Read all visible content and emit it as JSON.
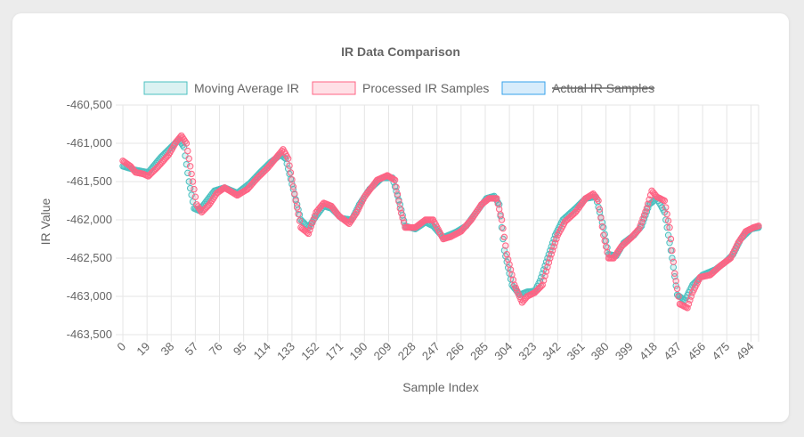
{
  "chart_data": {
    "type": "scatter",
    "title": "IR Data Comparison",
    "xlabel": "Sample Index",
    "ylabel": "IR Value",
    "xlim": [
      0,
      500
    ],
    "ylim": [
      -463500,
      -460500
    ],
    "x_tick_labels": [
      "0",
      "19",
      "38",
      "57",
      "76",
      "95",
      "114",
      "133",
      "152",
      "171",
      "190",
      "209",
      "228",
      "247",
      "266",
      "285",
      "304",
      "323",
      "342",
      "361",
      "380",
      "399",
      "418",
      "437",
      "456",
      "475",
      "494"
    ],
    "y_tick_labels": [
      "-460,500",
      "-461,000",
      "-461,500",
      "-462,000",
      "-462,500",
      "-463,000",
      "-463,500"
    ],
    "y_tick_values": [
      -460500,
      -461000,
      -461500,
      -462000,
      -462500,
      -463000,
      -463500
    ],
    "grid": true,
    "legend_position": "top",
    "series": [
      {
        "name": "Moving Average IR",
        "color": "#4bc0c0",
        "fill": "rgba(75,192,192,0.2)",
        "hidden": false,
        "keypoints": [
          [
            0,
            -461300
          ],
          [
            10,
            -461350
          ],
          [
            20,
            -461380
          ],
          [
            30,
            -461180
          ],
          [
            38,
            -461050
          ],
          [
            44,
            -460950
          ],
          [
            48,
            -461050
          ],
          [
            52,
            -461500
          ],
          [
            56,
            -461850
          ],
          [
            60,
            -461880
          ],
          [
            66,
            -461750
          ],
          [
            72,
            -461620
          ],
          [
            80,
            -461580
          ],
          [
            90,
            -461650
          ],
          [
            100,
            -461520
          ],
          [
            108,
            -461380
          ],
          [
            116,
            -461250
          ],
          [
            124,
            -461150
          ],
          [
            128,
            -461200
          ],
          [
            134,
            -461600
          ],
          [
            140,
            -462000
          ],
          [
            146,
            -462100
          ],
          [
            152,
            -461950
          ],
          [
            158,
            -461820
          ],
          [
            164,
            -461850
          ],
          [
            172,
            -461980
          ],
          [
            180,
            -462000
          ],
          [
            186,
            -461800
          ],
          [
            194,
            -461600
          ],
          [
            204,
            -461450
          ],
          [
            212,
            -461450
          ],
          [
            218,
            -461800
          ],
          [
            222,
            -462080
          ],
          [
            230,
            -462120
          ],
          [
            238,
            -462030
          ],
          [
            244,
            -462080
          ],
          [
            252,
            -462230
          ],
          [
            262,
            -462160
          ],
          [
            270,
            -462080
          ],
          [
            278,
            -461900
          ],
          [
            286,
            -461720
          ],
          [
            292,
            -461690
          ],
          [
            296,
            -461800
          ],
          [
            300,
            -462400
          ],
          [
            306,
            -462850
          ],
          [
            312,
            -462980
          ],
          [
            318,
            -462940
          ],
          [
            324,
            -462930
          ],
          [
            328,
            -462800
          ],
          [
            334,
            -462500
          ],
          [
            340,
            -462200
          ],
          [
            346,
            -462000
          ],
          [
            356,
            -461850
          ],
          [
            364,
            -461720
          ],
          [
            372,
            -461700
          ],
          [
            378,
            -462100
          ],
          [
            382,
            -462450
          ],
          [
            388,
            -462470
          ],
          [
            394,
            -462300
          ],
          [
            402,
            -462200
          ],
          [
            408,
            -462080
          ],
          [
            414,
            -461800
          ],
          [
            420,
            -461720
          ],
          [
            426,
            -461900
          ],
          [
            432,
            -462500
          ],
          [
            436,
            -462980
          ],
          [
            442,
            -463050
          ],
          [
            448,
            -462850
          ],
          [
            456,
            -462720
          ],
          [
            466,
            -462650
          ],
          [
            474,
            -462550
          ],
          [
            480,
            -462450
          ],
          [
            486,
            -462250
          ],
          [
            494,
            -462120
          ],
          [
            500,
            -462100
          ]
        ]
      },
      {
        "name": "Processed IR Samples",
        "color": "#ff6384",
        "fill": "rgba(255,99,132,0.2)",
        "hidden": false,
        "keypoints": [
          [
            0,
            -461230
          ],
          [
            6,
            -461300
          ],
          [
            10,
            -461380
          ],
          [
            16,
            -461400
          ],
          [
            20,
            -461430
          ],
          [
            28,
            -461300
          ],
          [
            36,
            -461150
          ],
          [
            42,
            -460980
          ],
          [
            46,
            -460900
          ],
          [
            50,
            -461000
          ],
          [
            54,
            -461400
          ],
          [
            58,
            -461800
          ],
          [
            62,
            -461900
          ],
          [
            68,
            -461800
          ],
          [
            74,
            -461650
          ],
          [
            80,
            -461580
          ],
          [
            90,
            -461680
          ],
          [
            98,
            -461600
          ],
          [
            106,
            -461450
          ],
          [
            114,
            -461320
          ],
          [
            120,
            -461200
          ],
          [
            126,
            -461080
          ],
          [
            130,
            -461200
          ],
          [
            136,
            -461750
          ],
          [
            140,
            -462100
          ],
          [
            146,
            -462180
          ],
          [
            152,
            -461900
          ],
          [
            158,
            -461780
          ],
          [
            164,
            -461820
          ],
          [
            170,
            -461950
          ],
          [
            178,
            -462050
          ],
          [
            184,
            -461900
          ],
          [
            190,
            -461700
          ],
          [
            200,
            -461480
          ],
          [
            208,
            -461420
          ],
          [
            214,
            -461480
          ],
          [
            218,
            -461850
          ],
          [
            222,
            -462100
          ],
          [
            230,
            -462100
          ],
          [
            238,
            -462000
          ],
          [
            244,
            -462000
          ],
          [
            252,
            -462250
          ],
          [
            258,
            -462220
          ],
          [
            266,
            -462150
          ],
          [
            274,
            -462000
          ],
          [
            282,
            -461800
          ],
          [
            288,
            -461720
          ],
          [
            294,
            -461720
          ],
          [
            298,
            -462000
          ],
          [
            302,
            -462450
          ],
          [
            308,
            -462850
          ],
          [
            314,
            -463080
          ],
          [
            318,
            -463000
          ],
          [
            324,
            -462950
          ],
          [
            330,
            -462850
          ],
          [
            336,
            -462500
          ],
          [
            342,
            -462200
          ],
          [
            348,
            -462020
          ],
          [
            356,
            -461900
          ],
          [
            364,
            -461720
          ],
          [
            370,
            -461660
          ],
          [
            374,
            -461750
          ],
          [
            378,
            -462200
          ],
          [
            382,
            -462500
          ],
          [
            386,
            -462500
          ],
          [
            392,
            -462350
          ],
          [
            400,
            -462230
          ],
          [
            406,
            -462120
          ],
          [
            412,
            -461850
          ],
          [
            416,
            -461620
          ],
          [
            420,
            -461700
          ],
          [
            426,
            -461750
          ],
          [
            430,
            -462100
          ],
          [
            434,
            -462700
          ],
          [
            438,
            -463100
          ],
          [
            444,
            -463150
          ],
          [
            448,
            -462950
          ],
          [
            454,
            -462750
          ],
          [
            462,
            -462720
          ],
          [
            470,
            -462600
          ],
          [
            478,
            -462500
          ],
          [
            484,
            -462300
          ],
          [
            490,
            -462150
          ],
          [
            496,
            -462100
          ],
          [
            500,
            -462080
          ]
        ]
      },
      {
        "name": "Actual IR Samples",
        "color": "#36a2eb",
        "fill": "rgba(54,162,235,0.2)",
        "hidden": true
      }
    ]
  }
}
